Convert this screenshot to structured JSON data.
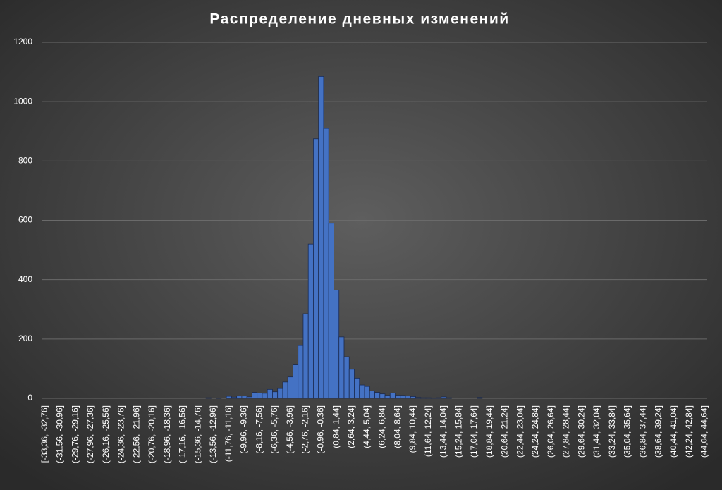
{
  "chart_data": {
    "type": "bar",
    "title": "Распределение дневных изменений",
    "categories": [
      "[-33,36, -32,76]",
      null,
      null,
      "(-31,56, -30,96]",
      null,
      null,
      "(-29,76, -29,16]",
      null,
      null,
      "(-27,96, -27,36]",
      null,
      null,
      "(-26,16, -25,56]",
      null,
      null,
      "(-24,36, -23,76]",
      null,
      null,
      "(-22,56, -21,96]",
      null,
      null,
      "(-20,76, -20,16]",
      null,
      null,
      "(-18,96, -18,36]",
      null,
      null,
      "(-17,16, -16,56]",
      null,
      null,
      "(-15,36, -14,76]",
      null,
      null,
      "(-13,56, -12,96]",
      null,
      null,
      "(-11,76, -11,16]",
      null,
      null,
      "(-9,96, -9,36]",
      null,
      null,
      "(-8,16, -7,56]",
      null,
      null,
      "(-6,36, -5,76]",
      null,
      null,
      "(-4,56, -3,96]",
      null,
      null,
      "(-2,76, -2,16]",
      null,
      null,
      "(-0,96, -0,36]",
      null,
      null,
      "(0,84, 1,44]",
      null,
      null,
      "(2,64, 3,24]",
      null,
      null,
      "(4,44, 5,04]",
      null,
      null,
      "(6,24, 6,84]",
      null,
      null,
      "(8,04, 8,64]",
      null,
      null,
      "(9,84, 10,44]",
      null,
      null,
      "(11,64, 12,24]",
      null,
      null,
      "(13,44, 14,04]",
      null,
      null,
      "(15,24, 15,84]",
      null,
      null,
      "(17,04, 17,64]",
      null,
      null,
      "(18,84, 19,44]",
      null,
      null,
      "(20,64, 21,24]",
      null,
      null,
      "(22,44, 23,04]",
      null,
      null,
      "(24,24, 24,84]",
      null,
      null,
      "(26,04, 26,64]",
      null,
      null,
      "(27,84, 28,44]",
      null,
      null,
      "(29,64, 30,24]",
      null,
      null,
      "(31,44, 32,04]",
      null,
      null,
      "(33,24, 33,84]",
      null,
      null,
      "(35,04, 35,64]",
      null,
      null,
      "(36,84, 37,44]",
      null,
      null,
      "(38,64, 39,24]",
      null,
      null,
      "(40,44, 41,04]",
      null,
      null,
      "(42,24, 42,84]",
      null,
      null,
      "(44,04, 44,64]"
    ],
    "values": [
      0,
      0,
      0,
      0,
      0,
      0,
      0,
      0,
      0,
      0,
      0,
      0,
      0,
      0,
      0,
      0,
      0,
      0,
      0,
      0,
      0,
      0,
      0,
      0,
      0,
      0,
      0,
      0,
      0,
      0,
      0,
      0,
      2,
      0,
      1,
      0,
      7,
      4,
      8,
      8,
      5,
      20,
      18,
      17,
      30,
      22,
      33,
      55,
      72,
      115,
      178,
      285,
      520,
      875,
      1085,
      910,
      590,
      365,
      207,
      140,
      98,
      68,
      45,
      40,
      25,
      20,
      15,
      10,
      18,
      10,
      10,
      8,
      6,
      3,
      2,
      2,
      1,
      2,
      5,
      2,
      0,
      0,
      0,
      0,
      0,
      3,
      0,
      0,
      0,
      0,
      0,
      0,
      0,
      0,
      0,
      0,
      0,
      0,
      0,
      0,
      0,
      0,
      0,
      0,
      0,
      0,
      0,
      0,
      0,
      0,
      0,
      0,
      0,
      0,
      0,
      0,
      0,
      0,
      0,
      0,
      0,
      0,
      0,
      0,
      0,
      0,
      0,
      0,
      0,
      0
    ],
    "color": "#4472c4",
    "ylim": [
      0,
      1200
    ],
    "yticks": [
      0,
      200,
      400,
      600,
      800,
      1000,
      1200
    ],
    "grid": true
  }
}
